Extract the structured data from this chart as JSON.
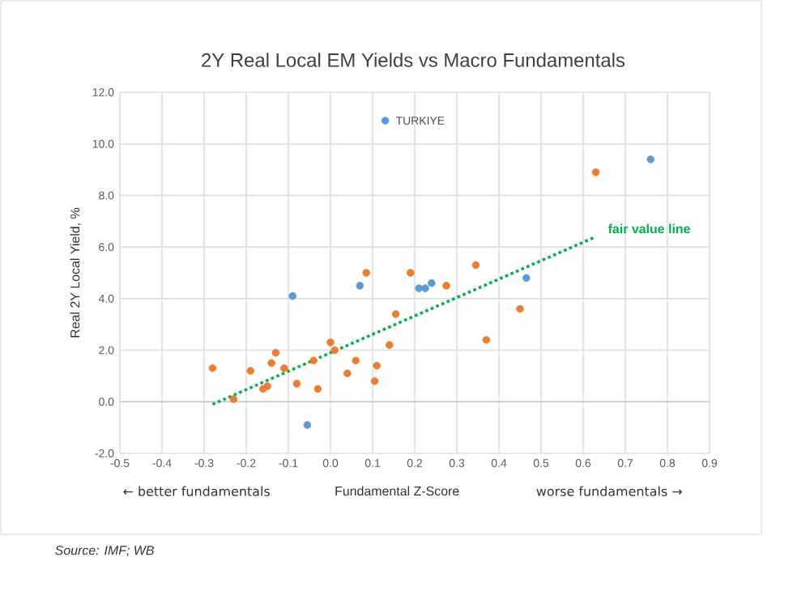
{
  "chart_data": {
    "type": "scatter",
    "title": "2Y Real Local  EM Yields vs Macro Fundamentals",
    "xlabel": "Fundamental Z-Score",
    "ylabel": "Real 2Y Local Yield, %",
    "xlim": [
      -0.5,
      0.9
    ],
    "ylim": [
      -2,
      12
    ],
    "xticks": [
      {
        "value": -0.5,
        "label": "-0.5"
      },
      {
        "value": -0.4,
        "label": "-0.4"
      },
      {
        "value": -0.3,
        "label": "-0.3"
      },
      {
        "value": -0.2,
        "label": "-0.2"
      },
      {
        "value": -0.1,
        "label": "-0.1"
      },
      {
        "value": 0,
        "label": "0.0"
      },
      {
        "value": 0.1,
        "label": "0.1"
      },
      {
        "value": 0.2,
        "label": "0.2"
      },
      {
        "value": 0.3,
        "label": "0.3"
      },
      {
        "value": 0.4,
        "label": "0.4"
      },
      {
        "value": 0.5,
        "label": "0.5"
      },
      {
        "value": 0.6,
        "label": "0.6"
      },
      {
        "value": 0.7,
        "label": "0.7"
      },
      {
        "value": 0.8,
        "label": "0.8"
      },
      {
        "value": 0.9,
        "label": "0.9"
      }
    ],
    "yticks": [
      {
        "value": -2,
        "label": "-2.0"
      },
      {
        "value": 0,
        "label": "0.0"
      },
      {
        "value": 2,
        "label": "2.0"
      },
      {
        "value": 4,
        "label": "4.0"
      },
      {
        "value": 6,
        "label": "6.0"
      },
      {
        "value": 8,
        "label": "8.0"
      },
      {
        "value": 10,
        "label": "10.0"
      },
      {
        "value": 12,
        "label": "12.0"
      }
    ],
    "grid": true,
    "legend": false,
    "marker": "circle",
    "series": [
      {
        "color": "#ed7d31",
        "x": [
          -0.28,
          -0.23,
          -0.19,
          -0.16,
          -0.15,
          -0.14,
          -0.13,
          -0.11,
          -0.08,
          -0.04,
          -0.03,
          0.0,
          0.01,
          0.04,
          0.06,
          0.085,
          0.105,
          0.11,
          0.14,
          0.155,
          0.19,
          0.275,
          0.345,
          0.37,
          0.45,
          0.63
        ],
        "values": [
          1.3,
          0.1,
          1.2,
          0.5,
          0.6,
          1.5,
          1.9,
          1.3,
          0.7,
          1.6,
          0.5,
          2.3,
          2.0,
          1.1,
          1.6,
          5.0,
          0.8,
          1.4,
          2.2,
          3.4,
          5.0,
          4.5,
          5.3,
          2.4,
          3.6,
          8.9
        ]
      },
      {
        "color": "#5b9bd5",
        "x": [
          -0.09,
          -0.055,
          0.07,
          0.21,
          0.225,
          0.24,
          0.465,
          0.76,
          0.13
        ],
        "values": [
          4.1,
          -0.9,
          4.5,
          4.4,
          4.4,
          4.6,
          4.8,
          9.4,
          10.9
        ]
      },
      {
        "name": "fair value line",
        "type": "line",
        "color": "#00b050",
        "marker": "none",
        "line_style": "dotted",
        "x": [
          -0.28,
          0.63
        ],
        "values": [
          -0.1,
          6.4
        ]
      }
    ],
    "annotations": [
      {
        "text": "TURKIYE",
        "x": 0.13,
        "y": 10.9
      },
      "← better fundamentals",
      "worse fundamentals →",
      "Source: IMF; WB"
    ]
  }
}
